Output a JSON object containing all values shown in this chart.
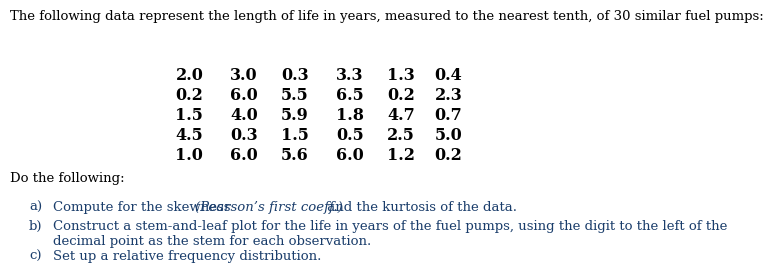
{
  "title": "The following data represent the length of life in years, measured to the nearest tenth, of 30 similar fuel pumps:",
  "table": [
    [
      "2.0",
      "3.0",
      "0.3",
      "3.3",
      "1.3",
      "0.4"
    ],
    [
      "0.2",
      "6.0",
      "5.5",
      "6.5",
      "0.2",
      "2.3"
    ],
    [
      "1.5",
      "4.0",
      "5.9",
      "1.8",
      "4.7",
      "0.7"
    ],
    [
      "4.5",
      "0.3",
      "1.5",
      "0.5",
      "2.5",
      "5.0"
    ],
    [
      "1.0",
      "6.0",
      "5.6",
      "6.0",
      "1.2",
      "0.2"
    ]
  ],
  "do_following": "Do the following:",
  "bg_color": "#ffffff",
  "text_color": "#000000",
  "item_color": "#1a3d6b",
  "title_fontsize": 9.5,
  "table_fontsize": 11.5,
  "body_fontsize": 9.5
}
